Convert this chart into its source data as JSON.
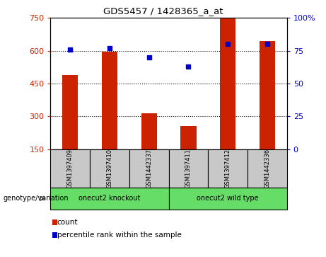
{
  "title": "GDS5457 / 1428365_a_at",
  "samples": [
    "GSM1397409",
    "GSM1397410",
    "GSM1442337",
    "GSM1397411",
    "GSM1397412",
    "GSM1442336"
  ],
  "counts": [
    490,
    595,
    315,
    255,
    750,
    645
  ],
  "percentiles": [
    76,
    77,
    70,
    63,
    80,
    80
  ],
  "group_labels": [
    "onecut2 knockout",
    "onecut2 wild type"
  ],
  "bar_color": "#cc2200",
  "dot_color": "#0000cc",
  "ylim_left": [
    150,
    750
  ],
  "ylim_right": [
    0,
    100
  ],
  "yticks_left": [
    150,
    300,
    450,
    600,
    750
  ],
  "yticks_right": [
    0,
    25,
    50,
    75,
    100
  ],
  "left_tick_color": "#cc2200",
  "right_tick_color": "#0000cc",
  "grid_color": "#000000",
  "sample_box_color": "#c8c8c8",
  "group_box_color": "#66dd66",
  "legend_count_color": "#cc2200",
  "legend_pct_color": "#0000cc",
  "bar_width": 0.4
}
